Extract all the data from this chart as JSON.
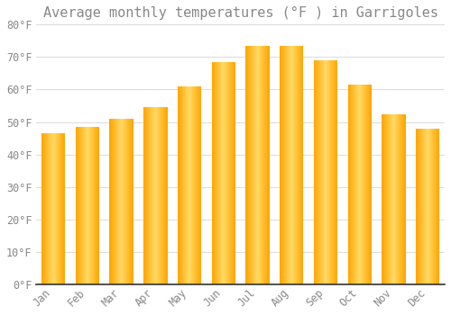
{
  "title": "Average monthly temperatures (°F ) in Garrigoles",
  "months": [
    "Jan",
    "Feb",
    "Mar",
    "Apr",
    "May",
    "Jun",
    "Jul",
    "Aug",
    "Sep",
    "Oct",
    "Nov",
    "Dec"
  ],
  "values": [
    46.5,
    48.5,
    51.0,
    54.5,
    61.0,
    68.5,
    73.5,
    73.5,
    69.0,
    61.5,
    52.5,
    48.0
  ],
  "bar_color_center": "#FFD966",
  "bar_color_edge": "#FFA500",
  "background_color": "#FFFFFF",
  "plot_bg_color": "#FFFFFF",
  "grid_color": "#DDDDDD",
  "text_color": "#888888",
  "axis_color": "#555555",
  "ylim": [
    0,
    80
  ],
  "yticks": [
    0,
    10,
    20,
    30,
    40,
    50,
    60,
    70,
    80
  ],
  "ytick_labels": [
    "0°F",
    "10°F",
    "20°F",
    "30°F",
    "40°F",
    "50°F",
    "60°F",
    "70°F",
    "80°F"
  ],
  "title_fontsize": 11,
  "tick_fontsize": 8.5
}
